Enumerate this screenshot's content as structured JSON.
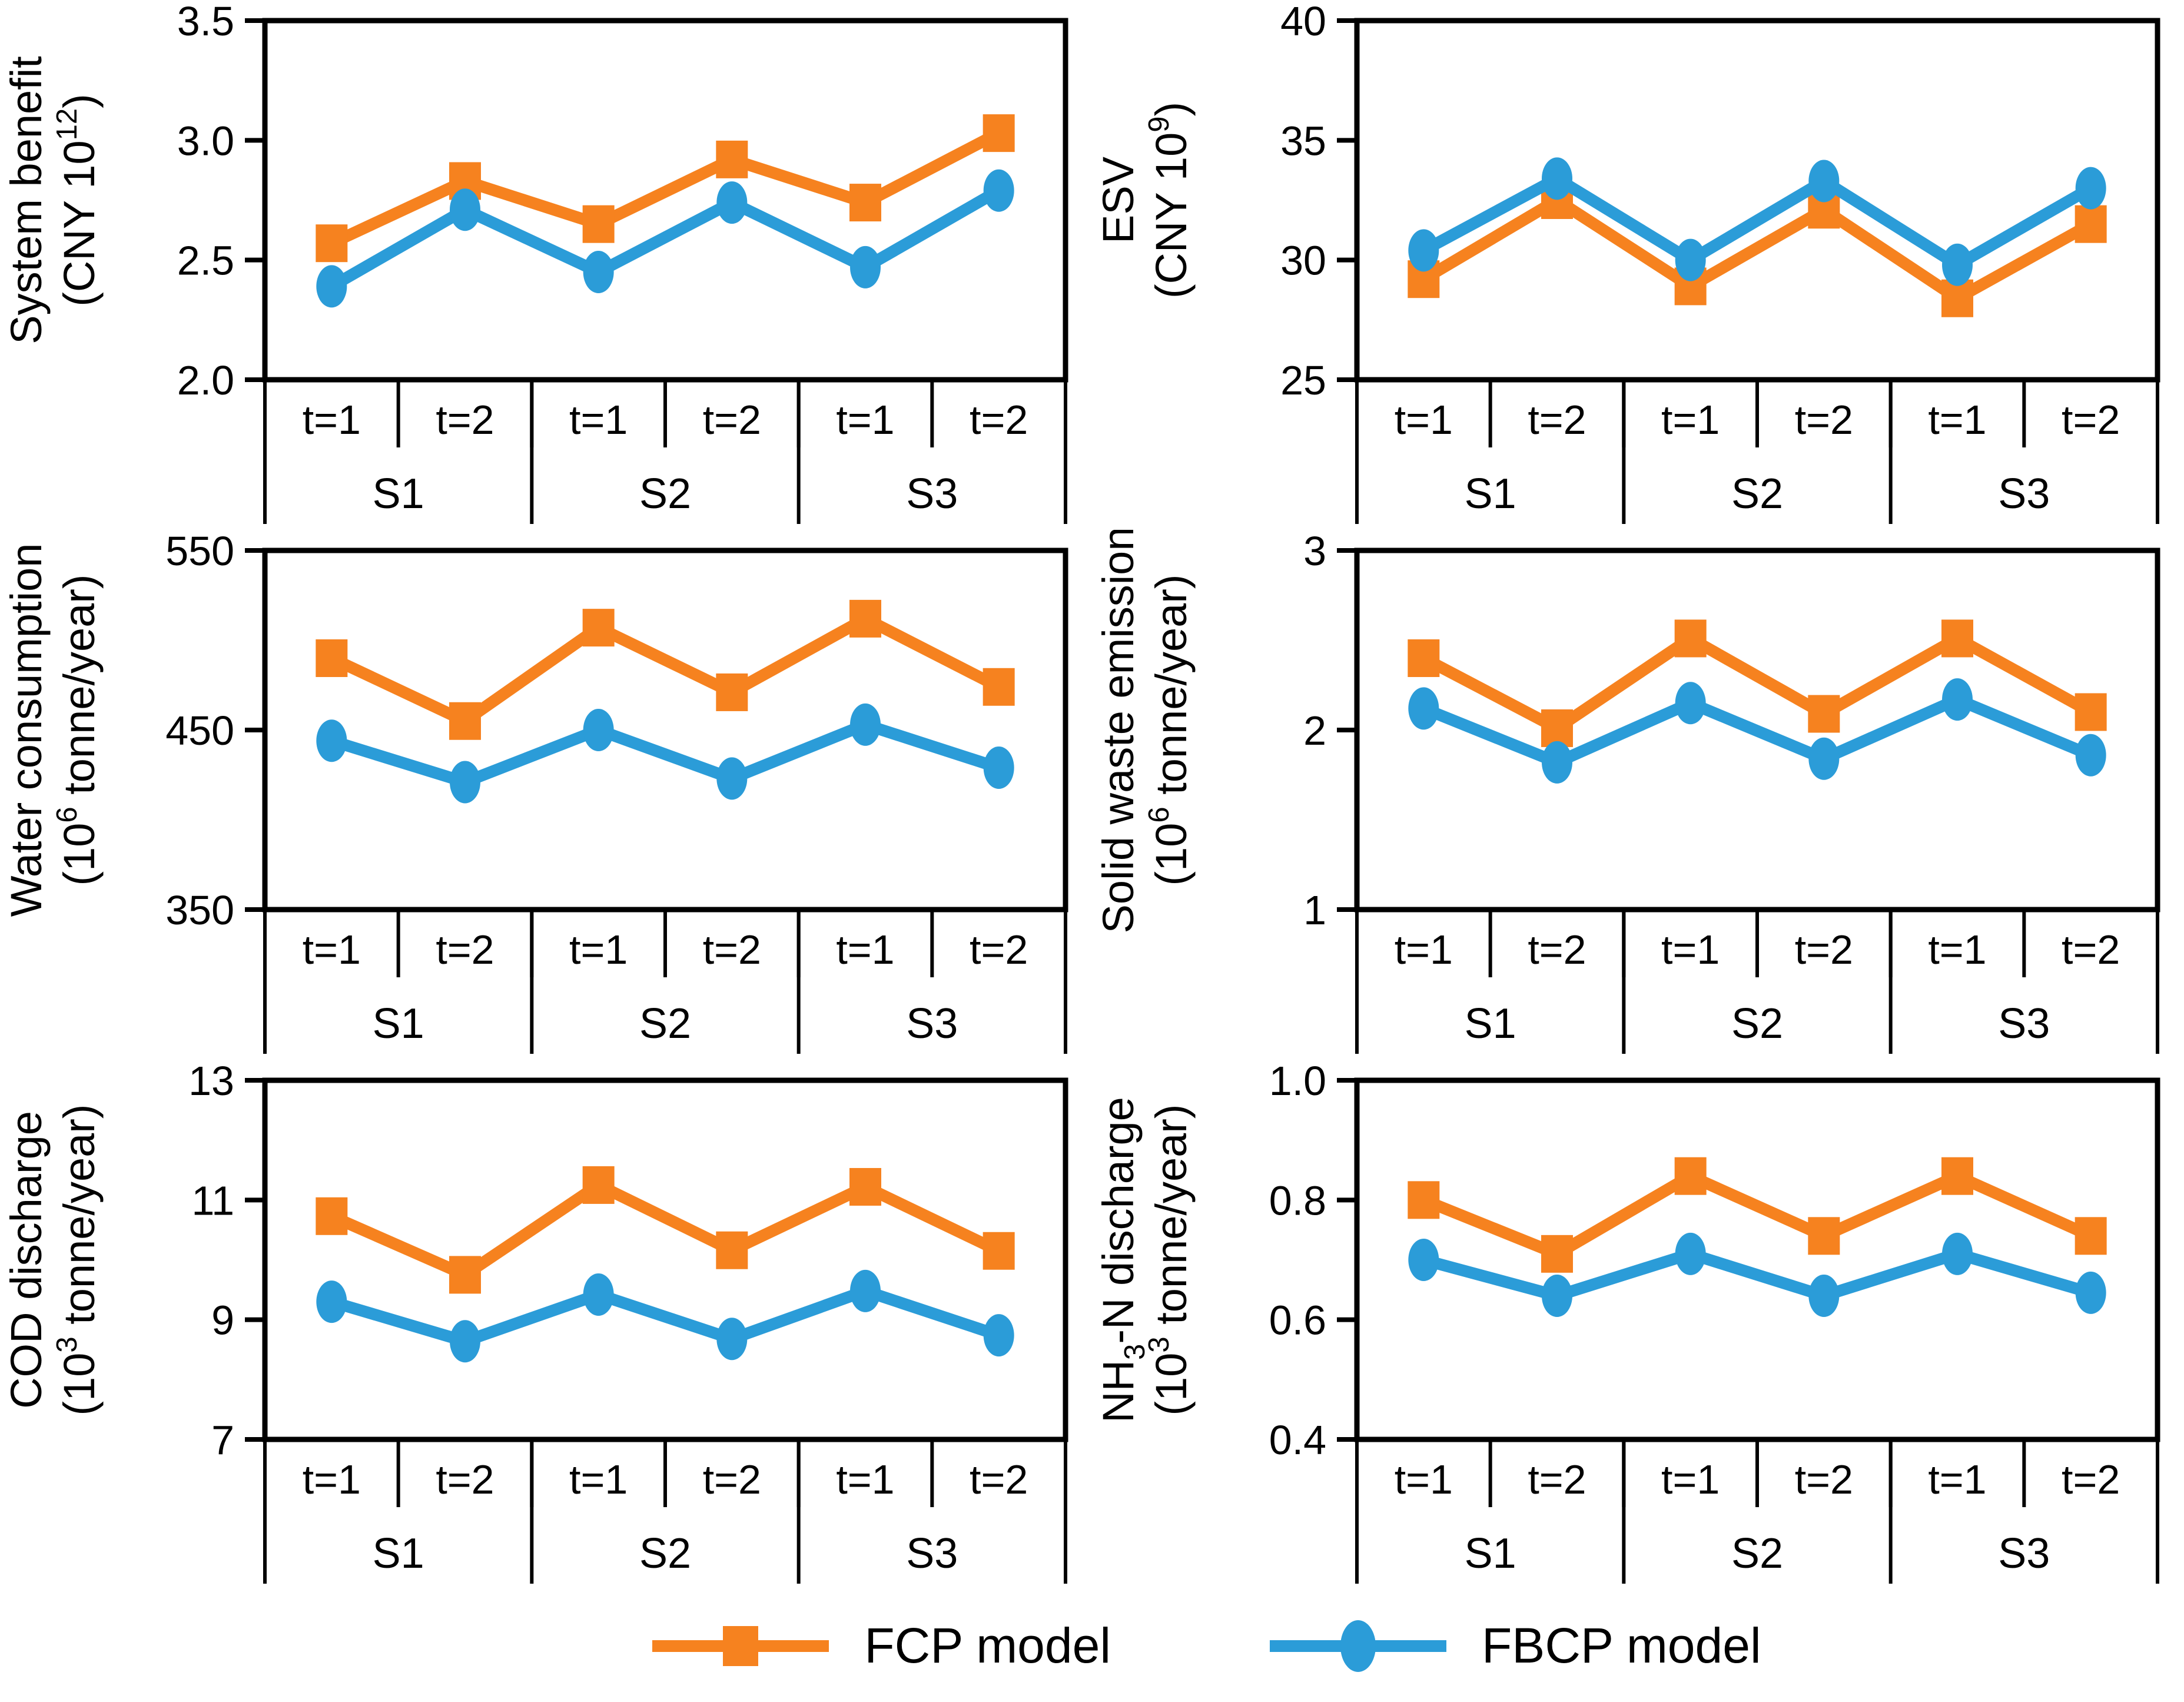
{
  "page": {
    "background": "#ffffff"
  },
  "colors": {
    "fcp": "#F6821F",
    "fbcp": "#2B9CD8",
    "axis": "#000000",
    "text": "#000000"
  },
  "legend": {
    "items": [
      {
        "id": "fcp",
        "label": "FCP model",
        "marker": "square",
        "color": "#F6821F"
      },
      {
        "id": "fbcp",
        "label": "FBCP model",
        "marker": "circle",
        "color": "#2B9CD8"
      }
    ]
  },
  "x_structure": {
    "groups": [
      "S1",
      "S2",
      "S3"
    ],
    "periods": [
      "t=1",
      "t=2"
    ]
  },
  "chart_data": [
    {
      "id": "system-benefit",
      "type": "line",
      "ylabel": "System benefit",
      "yunit": "(CNY 10^12)",
      "ylim": [
        2.0,
        3.5
      ],
      "yticks": [
        3.5,
        3.0,
        2.5,
        2.0
      ],
      "ytick_labels": [
        "3.5",
        "3.0",
        "2.5",
        "2.0"
      ],
      "categories": [
        "S1 t=1",
        "S1 t=2",
        "S2 t=1",
        "S2 t=2",
        "S3 t=1",
        "S3 t=2"
      ],
      "grid": false,
      "series": [
        {
          "name": "FCP model",
          "values": [
            2.57,
            2.83,
            2.65,
            2.92,
            2.74,
            3.03
          ]
        },
        {
          "name": "FBCP model",
          "values": [
            2.39,
            2.71,
            2.45,
            2.74,
            2.47,
            2.79
          ]
        }
      ]
    },
    {
      "id": "esv",
      "type": "line",
      "ylabel": "ESV",
      "yunit": "(CNY 10^9)",
      "ylim": [
        25,
        40
      ],
      "yticks": [
        40,
        35,
        30,
        25
      ],
      "ytick_labels": [
        "40",
        "35",
        "30",
        "25"
      ],
      "categories": [
        "S1 t=1",
        "S1 t=2",
        "S2 t=1",
        "S2 t=2",
        "S3 t=1",
        "S3 t=2"
      ],
      "grid": false,
      "series": [
        {
          "name": "FCP model",
          "values": [
            29.2,
            32.5,
            28.9,
            32.1,
            28.4,
            31.5
          ]
        },
        {
          "name": "FBCP model",
          "values": [
            30.4,
            33.4,
            30.0,
            33.3,
            29.8,
            33.0
          ]
        }
      ]
    },
    {
      "id": "water-consumption",
      "type": "line",
      "ylabel": "Water consumption",
      "yunit": "(10^6 tonne/year)",
      "ylim": [
        350,
        550
      ],
      "yticks": [
        550,
        450,
        350
      ],
      "ytick_labels": [
        "550",
        "450",
        "350"
      ],
      "categories": [
        "S1 t=1",
        "S1 t=2",
        "S2 t=1",
        "S2 t=2",
        "S3 t=1",
        "S3 t=2"
      ],
      "grid": false,
      "series": [
        {
          "name": "FCP model",
          "values": [
            490,
            455,
            507,
            471,
            512,
            474
          ]
        },
        {
          "name": "FBCP model",
          "values": [
            444,
            421,
            450,
            423,
            453,
            429
          ]
        }
      ]
    },
    {
      "id": "solid-waste-emission",
      "type": "line",
      "ylabel": "Solid waste emission",
      "yunit": "(10^6 tonne/year)",
      "ylim": [
        1,
        3
      ],
      "yticks": [
        3,
        2,
        1
      ],
      "ytick_labels": [
        "3",
        "2",
        "1"
      ],
      "categories": [
        "S1 t=1",
        "S1 t=2",
        "S2 t=1",
        "S2 t=2",
        "S3 t=1",
        "S3 t=2"
      ],
      "grid": false,
      "series": [
        {
          "name": "FCP model",
          "values": [
            2.4,
            2.01,
            2.51,
            2.09,
            2.51,
            2.1
          ]
        },
        {
          "name": "FBCP model",
          "values": [
            2.12,
            1.82,
            2.15,
            1.84,
            2.17,
            1.86
          ]
        }
      ]
    },
    {
      "id": "cod-discharge",
      "type": "line",
      "ylabel": "COD discharge",
      "yunit": "(10^3 tonne/year)",
      "ylim": [
        7,
        13
      ],
      "yticks": [
        13,
        11,
        9,
        7
      ],
      "ytick_labels": [
        "13",
        "11",
        "9",
        "7"
      ],
      "categories": [
        "S1 t=1",
        "S1 t=2",
        "S2 t=1",
        "S2 t=2",
        "S3 t=1",
        "S3 t=2"
      ],
      "grid": false,
      "series": [
        {
          "name": "FCP model",
          "values": [
            10.73,
            9.75,
            11.25,
            10.16,
            11.22,
            10.15
          ]
        },
        {
          "name": "FBCP model",
          "values": [
            9.3,
            8.64,
            9.42,
            8.68,
            9.48,
            8.74
          ]
        }
      ]
    },
    {
      "id": "nh3n-discharge",
      "type": "line",
      "ylabel": "NH_3-N discharge",
      "yunit": "(10^3 tonne/year)",
      "ylim": [
        0.4,
        1.0
      ],
      "yticks": [
        1.0,
        0.8,
        0.6,
        0.4
      ],
      "ytick_labels": [
        "1.0",
        "0.8",
        "0.6",
        "0.4"
      ],
      "categories": [
        "S1 t=1",
        "S1 t=2",
        "S2 t=1",
        "S2 t=2",
        "S3 t=1",
        "S3 t=2"
      ],
      "grid": false,
      "series": [
        {
          "name": "FCP model",
          "values": [
            0.8,
            0.71,
            0.84,
            0.74,
            0.84,
            0.74
          ]
        },
        {
          "name": "FBCP model",
          "values": [
            0.7,
            0.64,
            0.71,
            0.64,
            0.71,
            0.645
          ]
        }
      ]
    }
  ]
}
